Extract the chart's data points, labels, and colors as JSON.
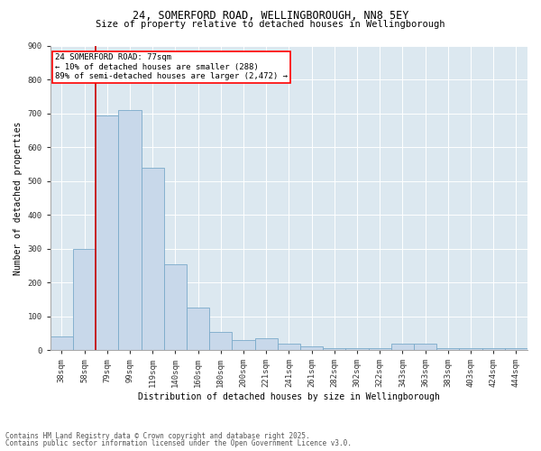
{
  "title1": "24, SOMERFORD ROAD, WELLINGBOROUGH, NN8 5EY",
  "title2": "Size of property relative to detached houses in Wellingborough",
  "xlabel": "Distribution of detached houses by size in Wellingborough",
  "ylabel": "Number of detached properties",
  "footnote1": "Contains HM Land Registry data © Crown copyright and database right 2025.",
  "footnote2": "Contains public sector information licensed under the Open Government Licence v3.0.",
  "annotation_title": "24 SOMERFORD ROAD: 77sqm",
  "annotation_line1": "← 10% of detached houses are smaller (288)",
  "annotation_line2": "89% of semi-detached houses are larger (2,472) →",
  "bar_color": "#c8d8ea",
  "bar_edge_color": "#7aaaca",
  "red_line_color": "#cc0000",
  "background_color": "#dce8f0",
  "grid_color": "#ffffff",
  "categories": [
    "38sqm",
    "58sqm",
    "79sqm",
    "99sqm",
    "119sqm",
    "140sqm",
    "160sqm",
    "180sqm",
    "200sqm",
    "221sqm",
    "241sqm",
    "261sqm",
    "282sqm",
    "302sqm",
    "322sqm",
    "343sqm",
    "363sqm",
    "383sqm",
    "403sqm",
    "424sqm",
    "444sqm"
  ],
  "values": [
    40,
    300,
    695,
    710,
    540,
    255,
    125,
    55,
    30,
    35,
    20,
    10,
    5,
    5,
    5,
    20,
    18,
    5,
    5,
    5,
    5
  ],
  "red_line_x": 1.5,
  "ylim": [
    0,
    900
  ],
  "yticks": [
    0,
    100,
    200,
    300,
    400,
    500,
    600,
    700,
    800,
    900
  ],
  "title1_fontsize": 8.5,
  "title2_fontsize": 7.5,
  "tick_fontsize": 6.5,
  "label_fontsize": 7.0,
  "annot_fontsize": 6.5,
  "footnote_fontsize": 5.5
}
